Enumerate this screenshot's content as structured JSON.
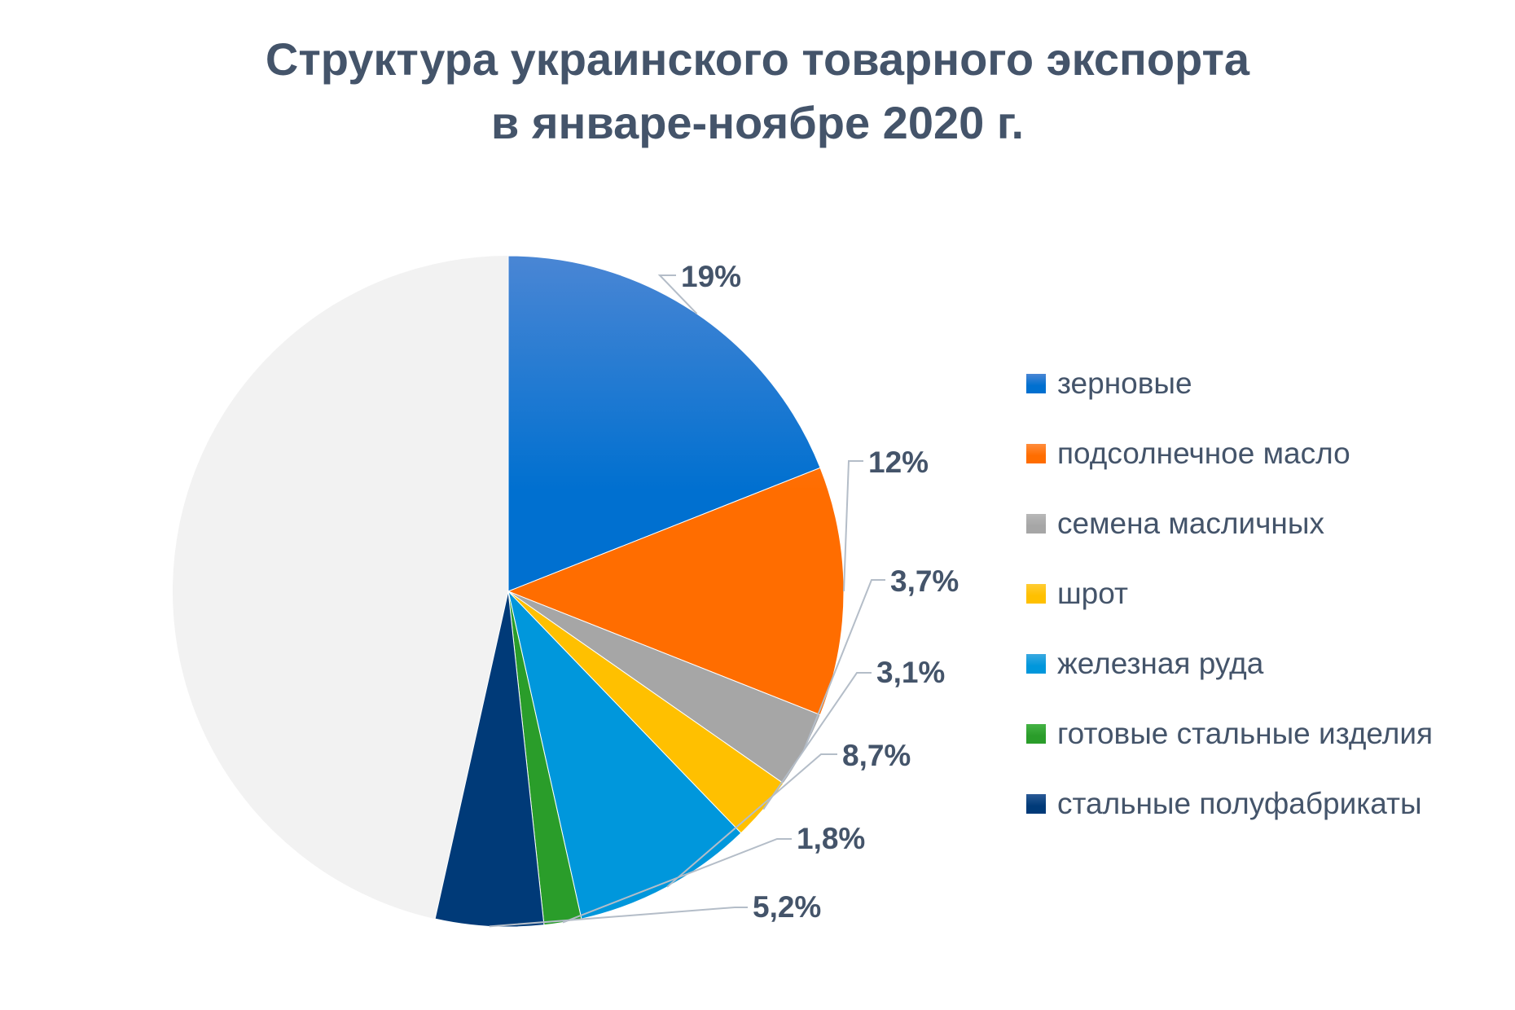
{
  "title_line1": "Структура украинского товарного экспорта",
  "title_line2": "в январе-ноябре 2020 г.",
  "chart_data": {
    "type": "pie",
    "title": "Структура украинского товарного экспорта в январе-ноябре 2020 г.",
    "slices": [
      {
        "name": "зерновые",
        "value": 19,
        "label": "19%",
        "color": "#0070d0",
        "color_light": "#4a86d4"
      },
      {
        "name": "подсолнечное масло",
        "value": 12,
        "label": "12%",
        "color": "#ff6d00",
        "color_light": "#ff8c3c"
      },
      {
        "name": "семена масличных",
        "value": 3.7,
        "label": "3,7%",
        "color": "#a6a6a6",
        "color_light": "#b8b8b8"
      },
      {
        "name": "шрот",
        "value": 3.1,
        "label": "3,1%",
        "color": "#ffc000",
        "color_light": "#ffcc33"
      },
      {
        "name": "железная руда",
        "value": 8.7,
        "label": "8,7%",
        "color": "#0097dc",
        "color_light": "#3aa9e0"
      },
      {
        "name": "готовые стальные изделия",
        "value": 1.8,
        "label": "1,8%",
        "color": "#2a9d2a",
        "color_light": "#45b345"
      },
      {
        "name": "стальные полуфабрикаты",
        "value": 5.2,
        "label": "5,2%",
        "color": "#003a78",
        "color_light": "#2a5a96"
      }
    ],
    "remainder": {
      "value": 46.5,
      "color": "#f2f2f2"
    },
    "label_color": "#44546a",
    "legend_position": "right"
  }
}
